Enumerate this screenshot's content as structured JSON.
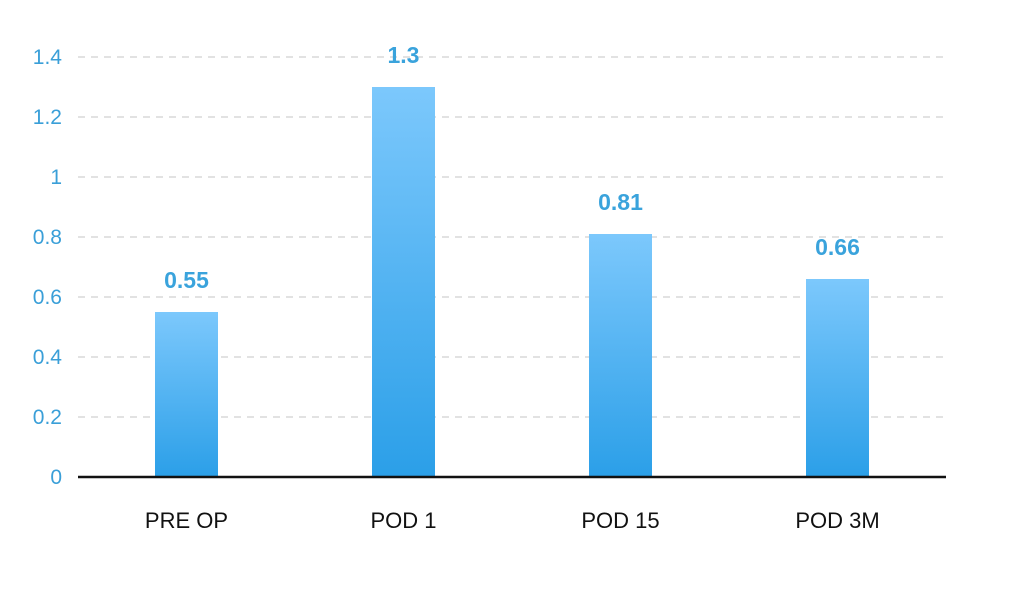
{
  "chart_data": {
    "type": "bar",
    "categories": [
      "PRE OP",
      "POD 1",
      "POD 15",
      "POD 3M"
    ],
    "values": [
      0.55,
      1.3,
      0.81,
      0.66
    ],
    "data_labels": [
      "0.55",
      "1.3",
      "0.81",
      "0.66"
    ],
    "title": "",
    "xlabel": "",
    "ylabel": "",
    "ylim": [
      0,
      1.4
    ],
    "y_ticks": [
      0,
      0.2,
      0.4,
      0.6,
      0.8,
      1,
      1.2,
      1.4
    ],
    "y_tick_labels": [
      "0",
      "0.2",
      "0.4",
      "0.6",
      "0.8",
      "1",
      "1.2",
      "1.4"
    ],
    "grid": true,
    "legend": "none",
    "colors": {
      "bar_top": "#7cc8fc",
      "bar_bottom": "#2b9fe8",
      "tick_label": "#3a9fd8",
      "data_label": "#3aa3dc",
      "category_label": "#111111",
      "grid": "#d9d9d9",
      "axis": "#111111"
    }
  }
}
